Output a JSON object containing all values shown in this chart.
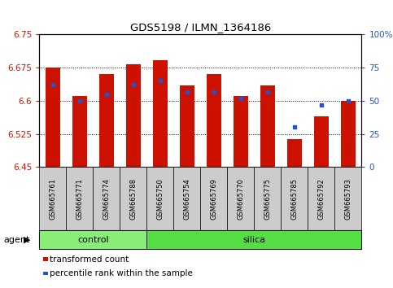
{
  "title": "GDS5198 / ILMN_1364186",
  "samples": [
    "GSM665761",
    "GSM665771",
    "GSM665774",
    "GSM665788",
    "GSM665750",
    "GSM665754",
    "GSM665769",
    "GSM665770",
    "GSM665775",
    "GSM665785",
    "GSM665792",
    "GSM665793"
  ],
  "n_control": 4,
  "bar_values": [
    6.675,
    6.61,
    6.66,
    6.683,
    6.692,
    6.635,
    6.66,
    6.61,
    6.635,
    6.513,
    6.565,
    6.6
  ],
  "pct_values": [
    62,
    50,
    55,
    62,
    65,
    57,
    57,
    52,
    57,
    30,
    47,
    50
  ],
  "bar_bottom": 6.45,
  "ylim_left": [
    6.45,
    6.75
  ],
  "ylim_right": [
    0,
    100
  ],
  "yticks_left": [
    6.45,
    6.525,
    6.6,
    6.675,
    6.75
  ],
  "yticks_right": [
    0,
    25,
    50,
    75,
    100
  ],
  "ytick_labels_right": [
    "0",
    "25",
    "50",
    "75",
    "100%"
  ],
  "hlines": [
    6.675,
    6.6,
    6.525
  ],
  "bar_color": "#cc1100",
  "dot_color": "#2255cc",
  "control_color": "#88ee77",
  "silica_color": "#55dd44",
  "xtick_bg": "#cccccc",
  "agent_label": "agent",
  "legend_items": [
    "transformed count",
    "percentile rank within the sample"
  ],
  "bar_width": 0.55,
  "tick_color_left": "#cc1100",
  "tick_color_right": "#2255cc"
}
